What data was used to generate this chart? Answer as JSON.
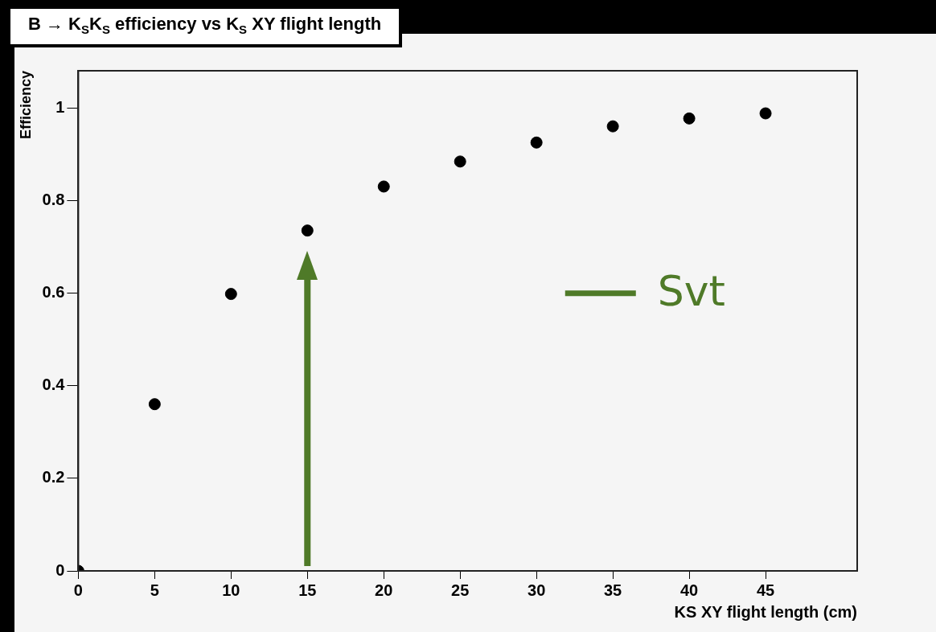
{
  "chart_data": {
    "type": "scatter",
    "title": "B → K$_{S}$K$_{S}$ efficiency vs K$_{S}$ XY flight length",
    "xlabel": "KS XY flight length (cm)",
    "ylabel": "Efficiency",
    "x": [
      0,
      5,
      10,
      15,
      20,
      25,
      30,
      35,
      40,
      45
    ],
    "series": [
      {
        "color": "#000000",
        "values": [
          0,
          0.36,
          0.598,
          0.735,
          0.83,
          0.884,
          0.925,
          0.96,
          0.977,
          0.988
        ]
      }
    ],
    "xlim": [
      0,
      51
    ],
    "xticks": [
      0,
      5,
      10,
      15,
      20,
      25,
      30,
      35,
      40,
      45
    ],
    "ylim": [
      0,
      1.08
    ],
    "yticks": [
      0,
      0.2,
      0.4,
      0.6,
      0.8,
      1
    ],
    "ref_lines": [
      {
        "axis": "x",
        "value": 15,
        "label": "Svt",
        "color": "#4f7a28"
      }
    ],
    "marker": "circle",
    "grid": false,
    "legend": false
  }
}
